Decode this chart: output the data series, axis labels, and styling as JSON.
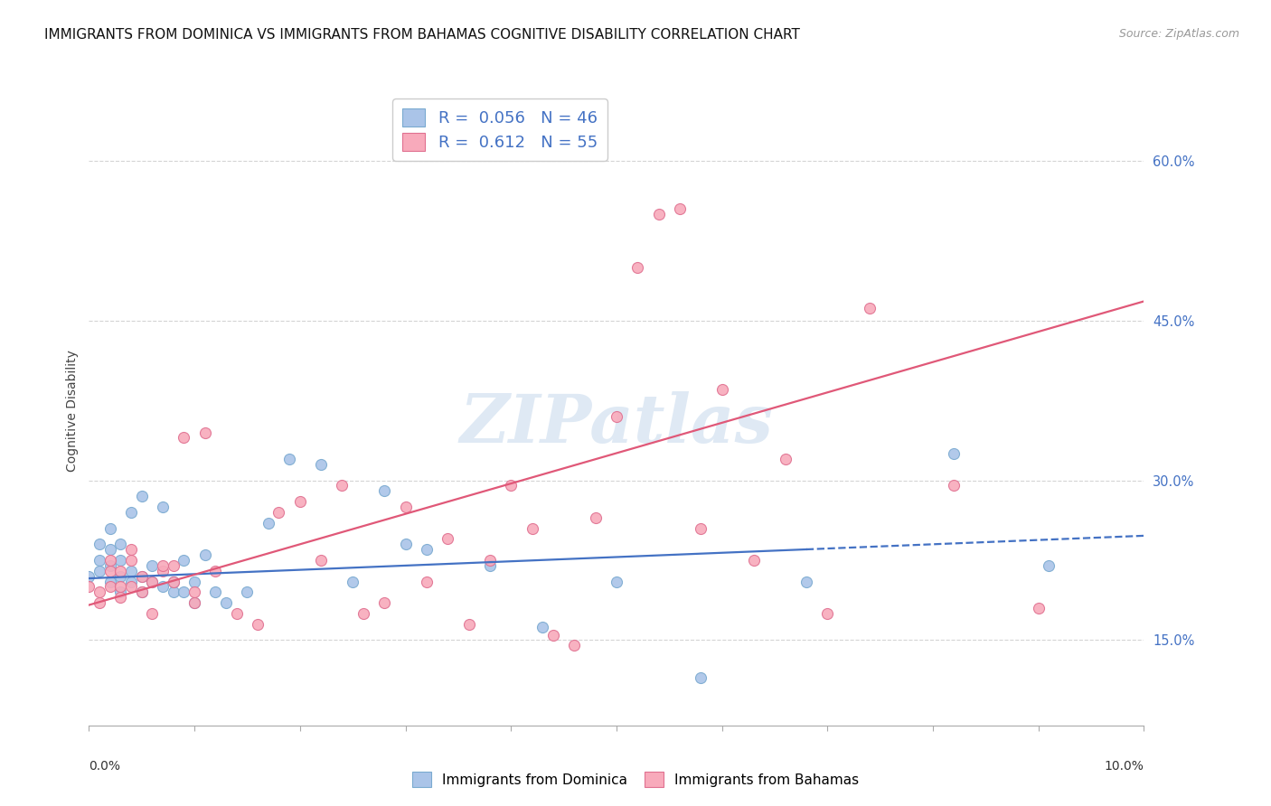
{
  "title": "IMMIGRANTS FROM DOMINICA VS IMMIGRANTS FROM BAHAMAS COGNITIVE DISABILITY CORRELATION CHART",
  "source": "Source: ZipAtlas.com",
  "ylabel": "Cognitive Disability",
  "y_ticks": [
    0.15,
    0.3,
    0.45,
    0.6
  ],
  "y_tick_labels": [
    "15.0%",
    "30.0%",
    "45.0%",
    "60.0%"
  ],
  "x_range": [
    0.0,
    0.1
  ],
  "y_range": [
    0.07,
    0.66
  ],
  "watermark": "ZIPatlas",
  "legend_entries": [
    {
      "label_r": "R = ",
      "label_rv": "0.056",
      "label_n": "  N = ",
      "label_nv": "46",
      "color": "#aac4e8",
      "edge_color": "#7aaad0"
    },
    {
      "label_r": "R = ",
      "label_rv": "0.612",
      "label_n": "  N = ",
      "label_nv": "55",
      "color": "#f8aabb",
      "edge_color": "#e07090"
    }
  ],
  "series_dominica": {
    "color": "#aac4e8",
    "edge_color": "#7aaad0",
    "x": [
      0.0,
      0.001,
      0.001,
      0.001,
      0.002,
      0.002,
      0.002,
      0.002,
      0.003,
      0.003,
      0.003,
      0.003,
      0.004,
      0.004,
      0.004,
      0.005,
      0.005,
      0.005,
      0.006,
      0.006,
      0.007,
      0.007,
      0.008,
      0.008,
      0.009,
      0.009,
      0.01,
      0.01,
      0.011,
      0.012,
      0.013,
      0.015,
      0.017,
      0.019,
      0.022,
      0.025,
      0.028,
      0.03,
      0.032,
      0.038,
      0.043,
      0.05,
      0.058,
      0.068,
      0.082,
      0.091
    ],
    "y": [
      0.21,
      0.225,
      0.24,
      0.215,
      0.205,
      0.22,
      0.235,
      0.255,
      0.195,
      0.21,
      0.225,
      0.24,
      0.205,
      0.215,
      0.27,
      0.195,
      0.21,
      0.285,
      0.205,
      0.22,
      0.2,
      0.275,
      0.195,
      0.205,
      0.195,
      0.225,
      0.185,
      0.205,
      0.23,
      0.195,
      0.185,
      0.195,
      0.26,
      0.32,
      0.315,
      0.205,
      0.29,
      0.24,
      0.235,
      0.22,
      0.162,
      0.205,
      0.115,
      0.205,
      0.325,
      0.22
    ]
  },
  "series_bahamas": {
    "color": "#f8aabb",
    "edge_color": "#e07090",
    "x": [
      0.0,
      0.001,
      0.001,
      0.002,
      0.002,
      0.002,
      0.003,
      0.003,
      0.003,
      0.004,
      0.004,
      0.004,
      0.005,
      0.005,
      0.006,
      0.006,
      0.007,
      0.007,
      0.008,
      0.008,
      0.009,
      0.01,
      0.01,
      0.011,
      0.012,
      0.014,
      0.016,
      0.018,
      0.02,
      0.022,
      0.024,
      0.026,
      0.028,
      0.03,
      0.032,
      0.034,
      0.036,
      0.038,
      0.04,
      0.042,
      0.044,
      0.046,
      0.048,
      0.05,
      0.052,
      0.054,
      0.056,
      0.058,
      0.06,
      0.063,
      0.066,
      0.07,
      0.074,
      0.082,
      0.09
    ],
    "y": [
      0.2,
      0.185,
      0.195,
      0.2,
      0.215,
      0.225,
      0.19,
      0.2,
      0.215,
      0.2,
      0.225,
      0.235,
      0.21,
      0.195,
      0.175,
      0.205,
      0.215,
      0.22,
      0.205,
      0.22,
      0.34,
      0.185,
      0.195,
      0.345,
      0.215,
      0.175,
      0.165,
      0.27,
      0.28,
      0.225,
      0.295,
      0.175,
      0.185,
      0.275,
      0.205,
      0.245,
      0.165,
      0.225,
      0.295,
      0.255,
      0.155,
      0.145,
      0.265,
      0.36,
      0.5,
      0.55,
      0.555,
      0.255,
      0.385,
      0.225,
      0.32,
      0.175,
      0.462,
      0.295,
      0.18
    ]
  },
  "trendline_dominica": {
    "x_solid_start": 0.0,
    "x_solid_end": 0.068,
    "x_dash_start": 0.068,
    "x_dash_end": 0.1,
    "slope": 0.4,
    "intercept": 0.208,
    "color": "#4472c4"
  },
  "trendline_bahamas": {
    "x_start": 0.0,
    "x_end": 0.1,
    "slope": 2.85,
    "intercept": 0.183,
    "color": "#e05878"
  },
  "bg_color": "#ffffff",
  "grid_color": "#d0d0d0",
  "title_fontsize": 11,
  "axis_label_fontsize": 10,
  "tick_fontsize": 10.5
}
